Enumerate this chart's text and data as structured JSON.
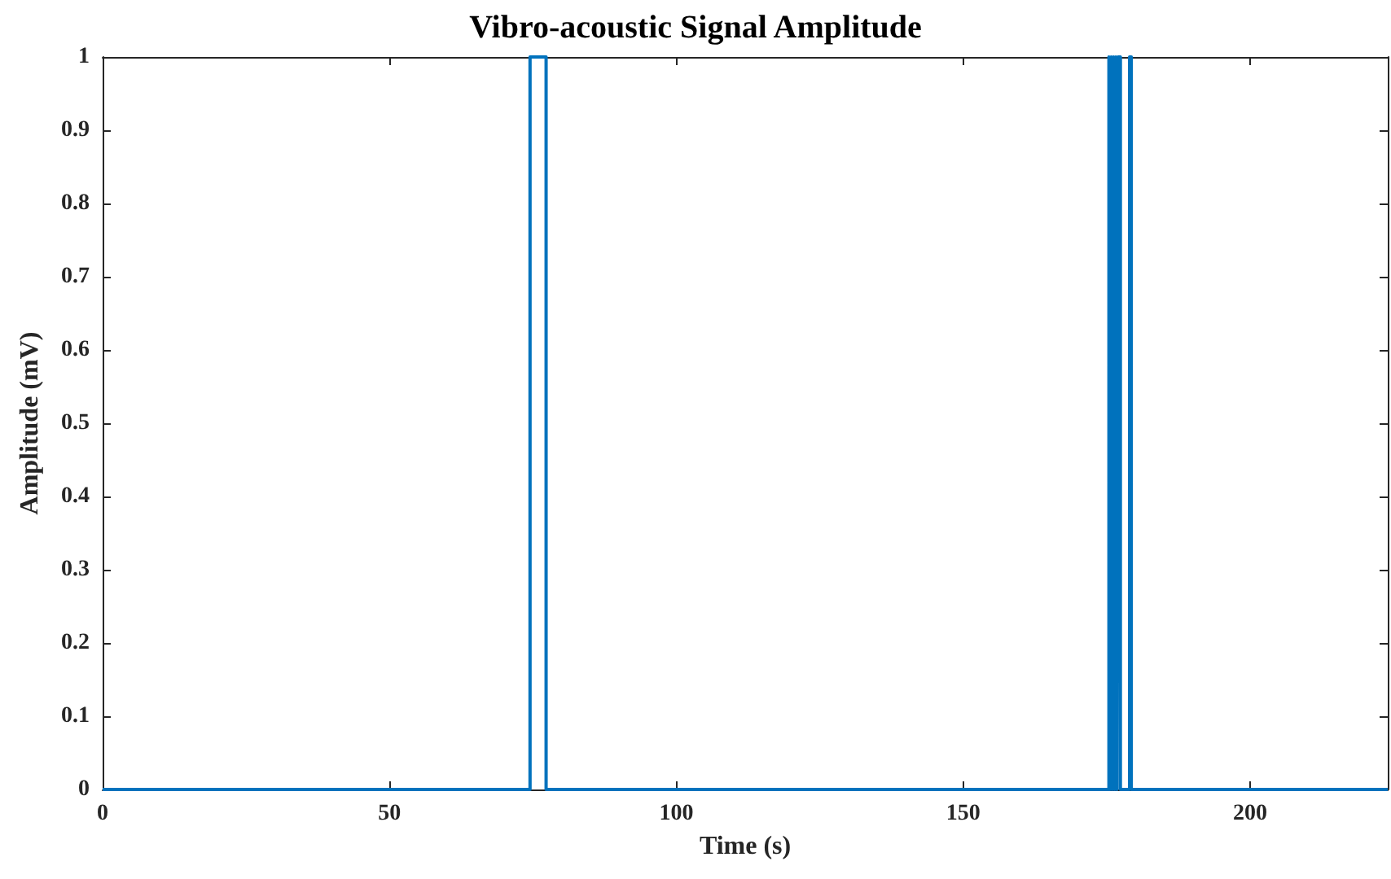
{
  "chart_data": {
    "type": "line",
    "title": "Vibro-acoustic Signal Amplitude",
    "xlabel": "Time (s)",
    "ylabel": "Amplitude (mV)",
    "series": [
      {
        "color": "#0072bd",
        "x": [
          0,
          74.5,
          74.5,
          77.3,
          77.3,
          175.4,
          175.4,
          175.6,
          175.6,
          175.8,
          175.8,
          176.0,
          176.0,
          176.2,
          176.2,
          176.4,
          176.4,
          176.6,
          176.6,
          176.8,
          176.8,
          177.0,
          177.0,
          177.4,
          177.4,
          179.0,
          179.0,
          179.3,
          179.3,
          224
        ],
        "values": [
          0,
          0,
          1,
          1,
          0,
          0,
          1,
          1,
          0,
          0,
          1,
          1,
          0,
          0,
          1,
          1,
          0,
          0,
          1,
          1,
          0,
          0,
          1,
          1,
          0,
          0,
          1,
          1,
          0,
          0
        ]
      }
    ],
    "xlim": [
      0,
      224
    ],
    "xticks": [
      0,
      50,
      100,
      150,
      200
    ],
    "ylim": [
      0,
      1
    ],
    "yticks": [
      0,
      0.1,
      0.2,
      0.3,
      0.4,
      0.5,
      0.6,
      0.7,
      0.8,
      0.9,
      1
    ],
    "grid": false,
    "marker": "none",
    "line_style": "solid"
  }
}
